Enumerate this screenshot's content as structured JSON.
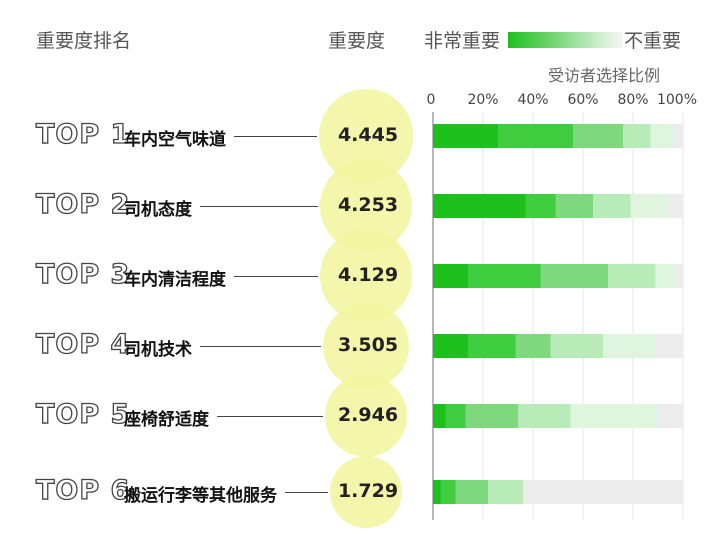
{
  "header": {
    "rank_label": "重要度排名",
    "score_label": "重要度",
    "legend_left": "非常重要",
    "legend_right": "不重要",
    "respondent_label": "受访者选择比例"
  },
  "colors": [
    "#1ec01e",
    "#3fcc3f",
    "#7ed97e",
    "#b9ebb9",
    "#dff5df",
    "#ececec"
  ],
  "chart_data": {
    "type": "bar",
    "orientation": "horizontal",
    "stacked": true,
    "x_ticks": [
      "0",
      "20%",
      "40%",
      "60%",
      "80%",
      "100%"
    ],
    "xlim": [
      0,
      100
    ],
    "items": [
      {
        "rank": "TOP 1",
        "factor": "车内空气味道",
        "score": "4.445",
        "segments": [
          26,
          30,
          20,
          11,
          9,
          4
        ]
      },
      {
        "rank": "TOP 2",
        "factor": "司机态度",
        "score": "4.253",
        "segments": [
          37,
          12,
          15,
          15,
          15,
          6
        ]
      },
      {
        "rank": "TOP 3",
        "factor": "车内清洁程度",
        "score": "4.129",
        "segments": [
          14,
          29,
          27,
          19,
          8,
          3
        ]
      },
      {
        "rank": "TOP 4",
        "factor": "司机技术",
        "score": "3.505",
        "segments": [
          14,
          19,
          14,
          21,
          21,
          11
        ]
      },
      {
        "rank": "TOP 5",
        "factor": "座椅舒适度",
        "score": "2.946",
        "segments": [
          5,
          8,
          21,
          21,
          35,
          10
        ]
      },
      {
        "rank": "TOP 6",
        "factor": "搬运行李等其他服务",
        "score": "1.729",
        "segments": [
          3,
          6,
          13,
          14,
          0,
          64
        ]
      }
    ]
  }
}
